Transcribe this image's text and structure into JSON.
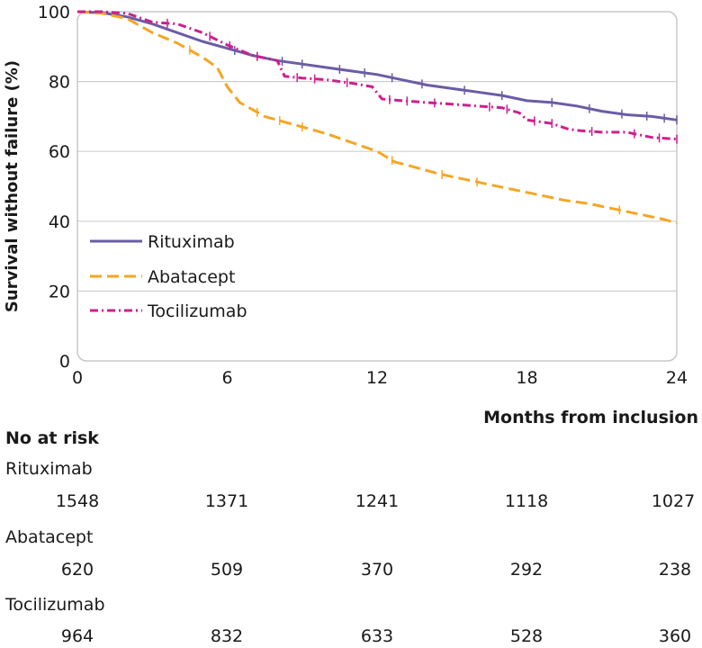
{
  "chart_data": {
    "type": "line",
    "subtype": "kaplan-meier",
    "xlabel": "Months from inclusion",
    "ylabel": "Survival without failure (%)",
    "xlim": [
      0,
      24
    ],
    "ylim": [
      0,
      100
    ],
    "xticks": [
      0,
      6,
      12,
      18,
      24
    ],
    "yticks": [
      0,
      20,
      40,
      60,
      80,
      100
    ],
    "grid": "horizontal",
    "legend_position": "lower-left",
    "series": [
      {
        "name": "Rituximab",
        "color": "#6b5ca5",
        "style": "solid",
        "points": [
          [
            0,
            100
          ],
          [
            1,
            99.7
          ],
          [
            2,
            98.5
          ],
          [
            3,
            96.5
          ],
          [
            4,
            94
          ],
          [
            5,
            91.5
          ],
          [
            6,
            89.5
          ],
          [
            7,
            87.5
          ],
          [
            8,
            86
          ],
          [
            9,
            85
          ],
          [
            10,
            84
          ],
          [
            11,
            83
          ],
          [
            12,
            82
          ],
          [
            13,
            80.5
          ],
          [
            14,
            79
          ],
          [
            15,
            78
          ],
          [
            16,
            77
          ],
          [
            17,
            76
          ],
          [
            18,
            74.5
          ],
          [
            19,
            74
          ],
          [
            20,
            73
          ],
          [
            21,
            71.5
          ],
          [
            22,
            70.5
          ],
          [
            23,
            70
          ],
          [
            24,
            69
          ]
        ],
        "censor_x": [
          6.3,
          7.2,
          8.2,
          9,
          10.5,
          11.5,
          12.6,
          13.8,
          15.5,
          17,
          19,
          20.5,
          21.8,
          22.8,
          23.5,
          24
        ]
      },
      {
        "name": "Abatacept",
        "color": "#f5a623",
        "style": "dashed",
        "points": [
          [
            0,
            100
          ],
          [
            1,
            99.5
          ],
          [
            2,
            98
          ],
          [
            3,
            94
          ],
          [
            4,
            91
          ],
          [
            5,
            87
          ],
          [
            5.6,
            84
          ],
          [
            6,
            78.5
          ],
          [
            6.5,
            74
          ],
          [
            7,
            72
          ],
          [
            7.5,
            70
          ],
          [
            8,
            69
          ],
          [
            9,
            67
          ],
          [
            10,
            65
          ],
          [
            11,
            62.5
          ],
          [
            12,
            60
          ],
          [
            12.7,
            57
          ],
          [
            13.5,
            55.5
          ],
          [
            14.5,
            53.5
          ],
          [
            15.5,
            52
          ],
          [
            16.5,
            50.5
          ],
          [
            17.5,
            49
          ],
          [
            18.5,
            47.5
          ],
          [
            19.5,
            46
          ],
          [
            20.5,
            45
          ],
          [
            21.5,
            43.5
          ],
          [
            22.5,
            42
          ],
          [
            23.5,
            40.5
          ],
          [
            24,
            39.5
          ]
        ],
        "censor_x": [
          4.5,
          7.2,
          8.1,
          9,
          12.6,
          14.6,
          16,
          21.7
        ]
      },
      {
        "name": "Tocilizumab",
        "color": "#cc1f8e",
        "style": "dash-dot",
        "points": [
          [
            0,
            100
          ],
          [
            1,
            100
          ],
          [
            2,
            99.5
          ],
          [
            3,
            97
          ],
          [
            4,
            96.5
          ],
          [
            5,
            94
          ],
          [
            6,
            90.5
          ],
          [
            7,
            87.5
          ],
          [
            8,
            86
          ],
          [
            8.3,
            81.5
          ],
          [
            9,
            81
          ],
          [
            10,
            80.5
          ],
          [
            11,
            79.5
          ],
          [
            11.8,
            78.5
          ],
          [
            12.2,
            75
          ],
          [
            13,
            74.5
          ],
          [
            14,
            74
          ],
          [
            15,
            73.5
          ],
          [
            16,
            73
          ],
          [
            17,
            72.5
          ],
          [
            17.7,
            71
          ],
          [
            18,
            69
          ],
          [
            19,
            68
          ],
          [
            19.6,
            66.5
          ],
          [
            20,
            66
          ],
          [
            21,
            65.5
          ],
          [
            22,
            65.5
          ],
          [
            23,
            64
          ],
          [
            24,
            63.5
          ]
        ],
        "censor_x": [
          3.6,
          5.3,
          6.1,
          7.2,
          8.8,
          9.5,
          10.8,
          12.5,
          13.2,
          14.3,
          16.5,
          17.2,
          18.3,
          19,
          20.6,
          22.3,
          23.3,
          24
        ]
      }
    ]
  },
  "risk_table": {
    "title": "No at risk",
    "timepoints": [
      0,
      6,
      12,
      18,
      24
    ],
    "rows": [
      {
        "name": "Rituximab",
        "values": [
          "1548",
          "1371",
          "1241",
          "1118",
          "1027"
        ]
      },
      {
        "name": "Abatacept",
        "values": [
          "620",
          "509",
          "370",
          "292",
          "238"
        ]
      },
      {
        "name": "Tocilizumab",
        "values": [
          "964",
          "832",
          "633",
          "528",
          "360"
        ]
      }
    ]
  }
}
